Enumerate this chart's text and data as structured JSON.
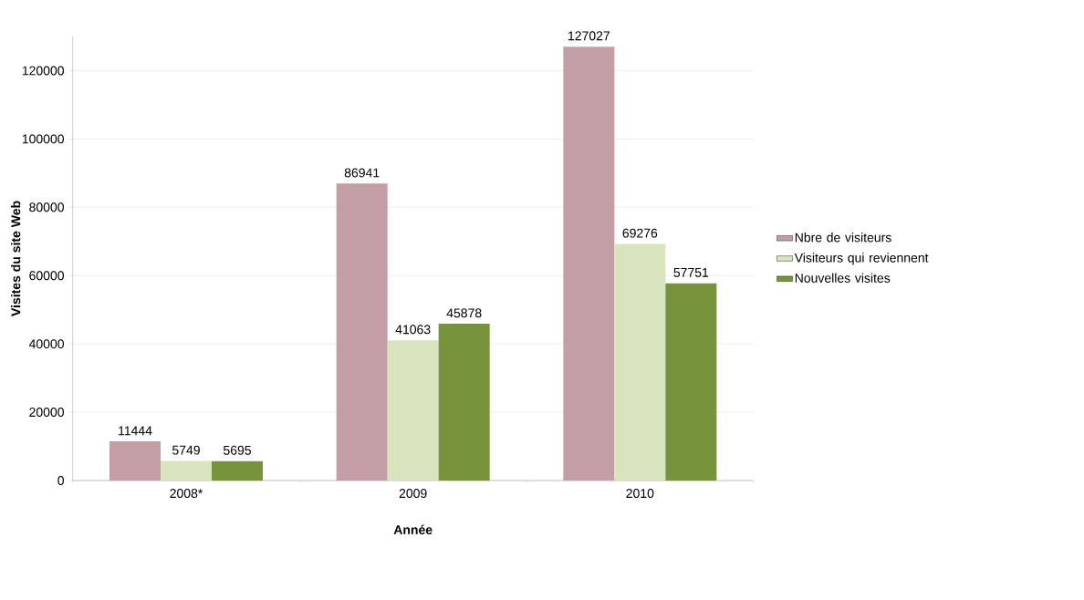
{
  "chart_data": {
    "type": "bar",
    "xlabel": "Année",
    "ylabel": "Visites du site Web",
    "categories": [
      "2008*",
      "2009",
      "2010"
    ],
    "series": [
      {
        "name": "Nbre de visiteurs",
        "color": "#c49ea6",
        "values": [
          11444,
          86941,
          127027
        ]
      },
      {
        "name": "Visiteurs qui reviennent",
        "color": "#d7e4bd",
        "values": [
          5749,
          41063,
          69276
        ]
      },
      {
        "name": "Nouvelles visites",
        "color": "#77933c",
        "values": [
          5695,
          45878,
          57751
        ]
      }
    ],
    "ylim": [
      0,
      130000
    ],
    "yticks": [
      0,
      20000,
      40000,
      60000,
      80000,
      100000,
      120000
    ],
    "grid": "y",
    "legend": "right",
    "data_labels": true
  }
}
